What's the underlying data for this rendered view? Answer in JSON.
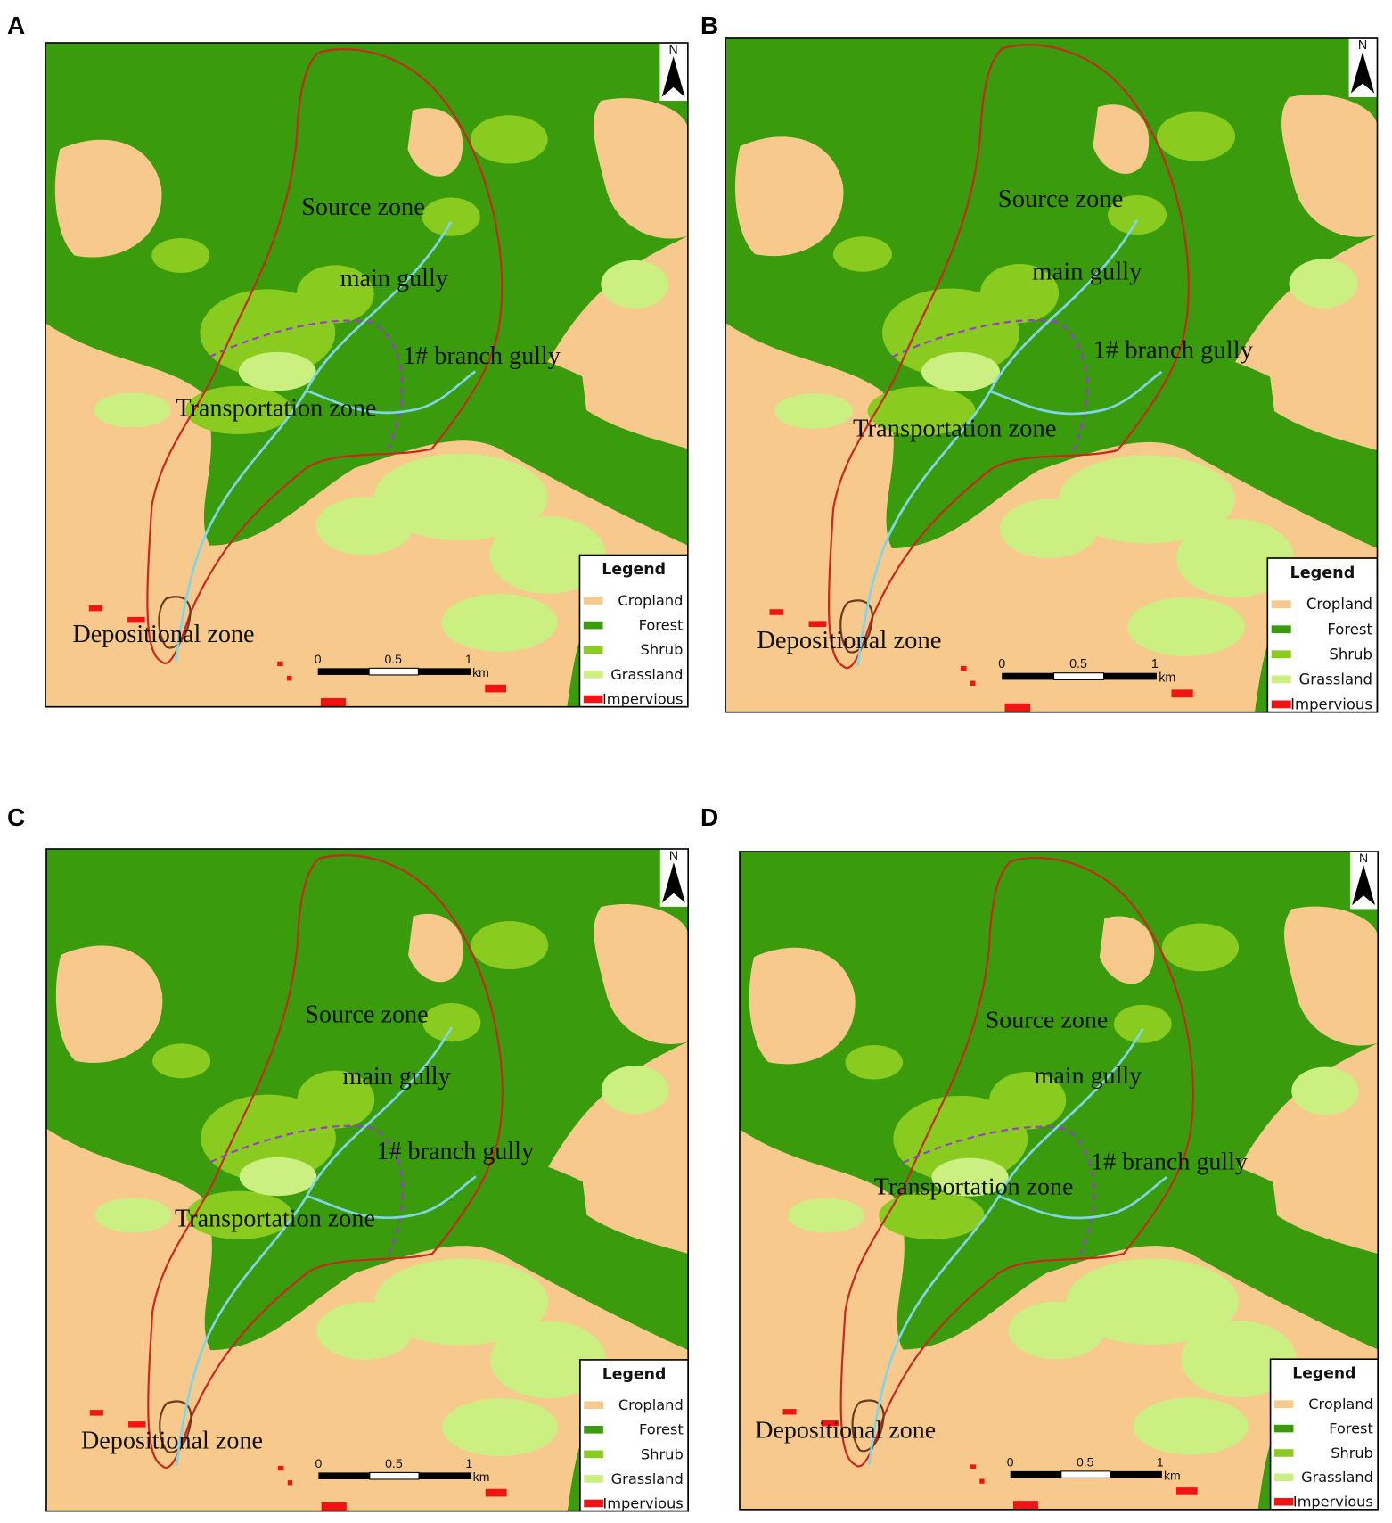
{
  "panels": [
    {
      "letter": "A",
      "labels": {
        "source_zone": "Source zone",
        "main_gully": "main gully",
        "branch_gully": "1# branch gully",
        "transportation_zone": "Transportation zone",
        "depositional_zone": "Depositional zone"
      },
      "north": "N",
      "scale": {
        "ticks": [
          "0",
          "0.5",
          "1"
        ],
        "unit": "km"
      },
      "legend": {
        "title": "Legend",
        "items": [
          {
            "label": "Cropland",
            "color": "#f8c98c"
          },
          {
            "label": "Forest",
            "color": "#3a9c0c"
          },
          {
            "label": "Shrub",
            "color": "#8acb1f"
          },
          {
            "label": "Grassland",
            "color": "#cbef80"
          },
          {
            "label": "Impervious",
            "color": "#f01414"
          }
        ]
      }
    },
    {
      "letter": "B",
      "labels": {
        "source_zone": "Source zone",
        "main_gully": "main gully",
        "branch_gully": "1# branch gully",
        "transportation_zone": "Transportation zone",
        "depositional_zone": "Depositional zone"
      },
      "north": "N",
      "scale": {
        "ticks": [
          "0",
          "0.5",
          "1"
        ],
        "unit": "km"
      },
      "legend": {
        "title": "Legend",
        "items": [
          {
            "label": "Cropland",
            "color": "#f8c98c"
          },
          {
            "label": "Forest",
            "color": "#3a9c0c"
          },
          {
            "label": "Shrub",
            "color": "#8acb1f"
          },
          {
            "label": "Grassland",
            "color": "#cbef80"
          },
          {
            "label": "Impervious",
            "color": "#f01414"
          }
        ]
      }
    },
    {
      "letter": "C",
      "labels": {
        "source_zone": "Source zone",
        "main_gully": "main gully",
        "branch_gully": "1# branch gully",
        "transportation_zone": "Transportation zone",
        "depositional_zone": "Depositional zone"
      },
      "north": "N",
      "scale": {
        "ticks": [
          "0",
          "0.5",
          "1"
        ],
        "unit": "km"
      },
      "legend": {
        "title": "Legend",
        "items": [
          {
            "label": "Cropland",
            "color": "#f8c98c"
          },
          {
            "label": "Forest",
            "color": "#3a9c0c"
          },
          {
            "label": "Shrub",
            "color": "#8acb1f"
          },
          {
            "label": "Grassland",
            "color": "#cbef80"
          },
          {
            "label": "Impervious",
            "color": "#f01414"
          }
        ]
      }
    },
    {
      "letter": "D",
      "labels": {
        "source_zone": "Source zone",
        "main_gully": "main gully",
        "branch_gully": "1# branch gully",
        "transportation_zone": "Transportation zone",
        "depositional_zone": "Depositional zone"
      },
      "north": "N",
      "scale": {
        "ticks": [
          "0",
          "0.5",
          "1"
        ],
        "unit": "km"
      },
      "legend": {
        "title": "Legend",
        "items": [
          {
            "label": "Cropland",
            "color": "#f8c98c"
          },
          {
            "label": "Forest",
            "color": "#3a9c0c"
          },
          {
            "label": "Shrub",
            "color": "#8acb1f"
          },
          {
            "label": "Grassland",
            "color": "#cbef80"
          },
          {
            "label": "Impervious",
            "color": "#f01414"
          }
        ]
      }
    }
  ]
}
